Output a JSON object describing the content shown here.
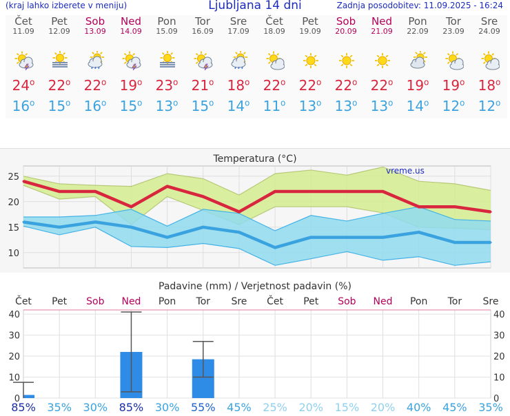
{
  "header": {
    "menu_text": "(kraj lahko izberete v meniju)",
    "title": "Ljubljana 14 dni",
    "updated": "Zadnja posodobitev: 11.09.2025 - 16:24"
  },
  "days": [
    {
      "name": "Čet",
      "date": "11.09",
      "weekend": false,
      "icon": "sun-cloud-lightning-icon",
      "max": "24",
      "min": "16"
    },
    {
      "name": "Pet",
      "date": "12.09",
      "weekend": false,
      "icon": "sun-fog-icon",
      "max": "22",
      "min": "15"
    },
    {
      "name": "Sob",
      "date": "13.09",
      "weekend": true,
      "icon": "sun-cloud-rain-icon",
      "max": "22",
      "min": "16"
    },
    {
      "name": "Ned",
      "date": "14.09",
      "weekend": true,
      "icon": "sun-cloud-lightning-icon",
      "max": "19",
      "min": "15"
    },
    {
      "name": "Pon",
      "date": "15.09",
      "weekend": false,
      "icon": "sun-fog-icon",
      "max": "23",
      "min": "13"
    },
    {
      "name": "Tor",
      "date": "16.09",
      "weekend": false,
      "icon": "sun-cloud-lightning-icon",
      "max": "21",
      "min": "15"
    },
    {
      "name": "Sre",
      "date": "17.09",
      "weekend": false,
      "icon": "sun-cloud-rain-icon",
      "max": "18",
      "min": "14"
    },
    {
      "name": "Čet",
      "date": "18.09",
      "weekend": false,
      "icon": "sun-small-cloud-icon",
      "max": "22",
      "min": "11"
    },
    {
      "name": "Pet",
      "date": "19.09",
      "weekend": false,
      "icon": "sun-icon",
      "max": "22",
      "min": "13"
    },
    {
      "name": "Sob",
      "date": "20.09",
      "weekend": true,
      "icon": "sun-icon",
      "max": "22",
      "min": "13"
    },
    {
      "name": "Ned",
      "date": "21.09",
      "weekend": true,
      "icon": "sun-icon",
      "max": "22",
      "min": "13"
    },
    {
      "name": "Pon",
      "date": "22.09",
      "weekend": false,
      "icon": "cloud-sun-icon",
      "max": "19",
      "min": "14"
    },
    {
      "name": "Tor",
      "date": "23.09",
      "weekend": false,
      "icon": "sun-small-cloud-icon",
      "max": "19",
      "min": "12"
    },
    {
      "name": "Sre",
      "date": "24.09",
      "weekend": false,
      "icon": "sun-small-cloud-icon",
      "max": "18",
      "min": "12"
    }
  ],
  "colors": {
    "max": "#d9263f",
    "min": "#3aa3df",
    "weekend": "#b4005a",
    "bar": "#2f8ce6",
    "maxband": "#d4ec8e",
    "minband": "#8fdbef"
  },
  "chart_data": [
    {
      "type": "line",
      "title": "Temperatura (°C)",
      "watermark": "vreme.us",
      "categories": [
        "Čet",
        "Pet",
        "Sob",
        "Ned",
        "Pon",
        "Tor",
        "Sre",
        "Čet",
        "Pet",
        "Sob",
        "Ned",
        "Pon",
        "Tor",
        "Sre"
      ],
      "ylim": [
        7,
        27
      ],
      "yticks": [
        10,
        15,
        20,
        25
      ],
      "grid": true,
      "series": [
        {
          "values": [
            24,
            22,
            22,
            19,
            23,
            21,
            18,
            22,
            22,
            22,
            22,
            19,
            19,
            18
          ]
        },
        {
          "values": [
            16,
            15,
            16,
            15,
            13,
            15,
            14,
            11,
            13,
            13,
            13,
            14,
            12,
            12
          ]
        }
      ],
      "bands": [
        {
          "upper": [
            25,
            23.5,
            23.2,
            23,
            25.5,
            24.5,
            21.3,
            25.5,
            26.2,
            25.2,
            26.8,
            24,
            23.5,
            22.2
          ],
          "lower": [
            23.2,
            20.5,
            21,
            15.5,
            21,
            18.3,
            15.5,
            19,
            19,
            19,
            17.8,
            15,
            14.8,
            14.5
          ]
        },
        {
          "upper": [
            17,
            17,
            17.3,
            18.5,
            15.2,
            18.5,
            17.7,
            14.3,
            17.3,
            16.2,
            17.7,
            19,
            16.5,
            16.2
          ],
          "lower": [
            15.2,
            13.5,
            15,
            11.2,
            11,
            11.8,
            10.8,
            7.5,
            8.8,
            10.2,
            8.5,
            9.2,
            7.5,
            8.2
          ]
        }
      ]
    },
    {
      "type": "bar",
      "title": "Padavine (mm) / Verjetnost padavin (%)",
      "categories": [
        "Čet",
        "Pet",
        "Sob",
        "Ned",
        "Pon",
        "Tor",
        "Sre",
        "Čet",
        "Pet",
        "Sob",
        "Ned",
        "Pon",
        "Tor",
        "Sre"
      ],
      "values": [
        1.5,
        0,
        0,
        22,
        0,
        18.5,
        0,
        0,
        0,
        0,
        0,
        0,
        0,
        0
      ],
      "error_low": [
        0,
        0,
        0,
        3,
        0,
        10,
        0,
        0,
        0,
        0,
        0,
        0,
        0,
        0
      ],
      "error_high": [
        7.5,
        0,
        0,
        41,
        0,
        27,
        0,
        0,
        0,
        0,
        0,
        0,
        0,
        0
      ],
      "ylim": [
        0,
        42
      ],
      "yticks": [
        0,
        10,
        20,
        30,
        40
      ],
      "probabilities": [
        "85%",
        "35%",
        "30%",
        "85%",
        "30%",
        "55%",
        "45%",
        "25%",
        "20%",
        "15%",
        "20%",
        "40%",
        "45%",
        "35%"
      ]
    }
  ]
}
